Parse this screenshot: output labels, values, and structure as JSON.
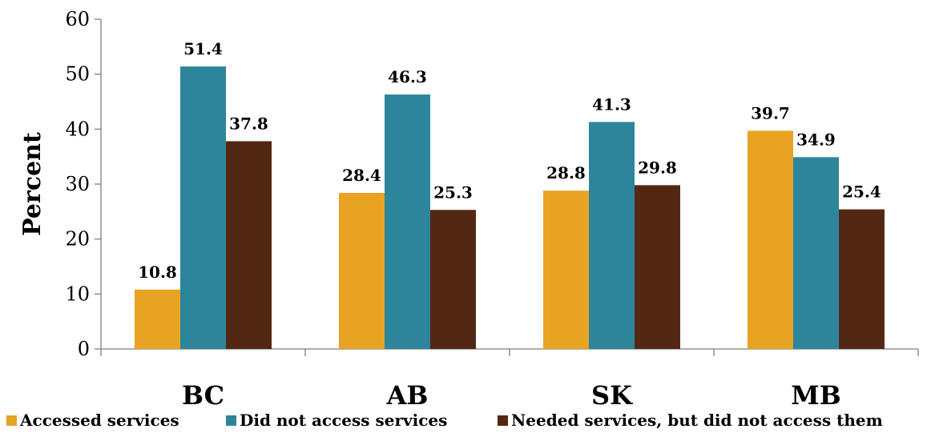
{
  "chart_data": {
    "type": "bar",
    "categories": [
      "BC",
      "AB",
      "SK",
      "MB"
    ],
    "series": [
      {
        "name": "Accessed services",
        "values": [
          10.8,
          28.4,
          28.8,
          39.7
        ],
        "color": "#E8A322"
      },
      {
        "name": "Did not access services",
        "values": [
          51.4,
          46.3,
          41.3,
          34.9
        ],
        "color": "#2D859C"
      },
      {
        "name": "Needed services, but did not access them",
        "values": [
          37.8,
          25.3,
          29.8,
          25.4
        ],
        "color": "#522814"
      }
    ],
    "ylabel": "Percent",
    "xlabel": "",
    "ylim": [
      0,
      60
    ],
    "yticks": [
      0,
      10,
      20,
      30,
      40,
      50,
      60
    ],
    "grid": false,
    "legend_position": "bottom",
    "data_labels": true
  }
}
